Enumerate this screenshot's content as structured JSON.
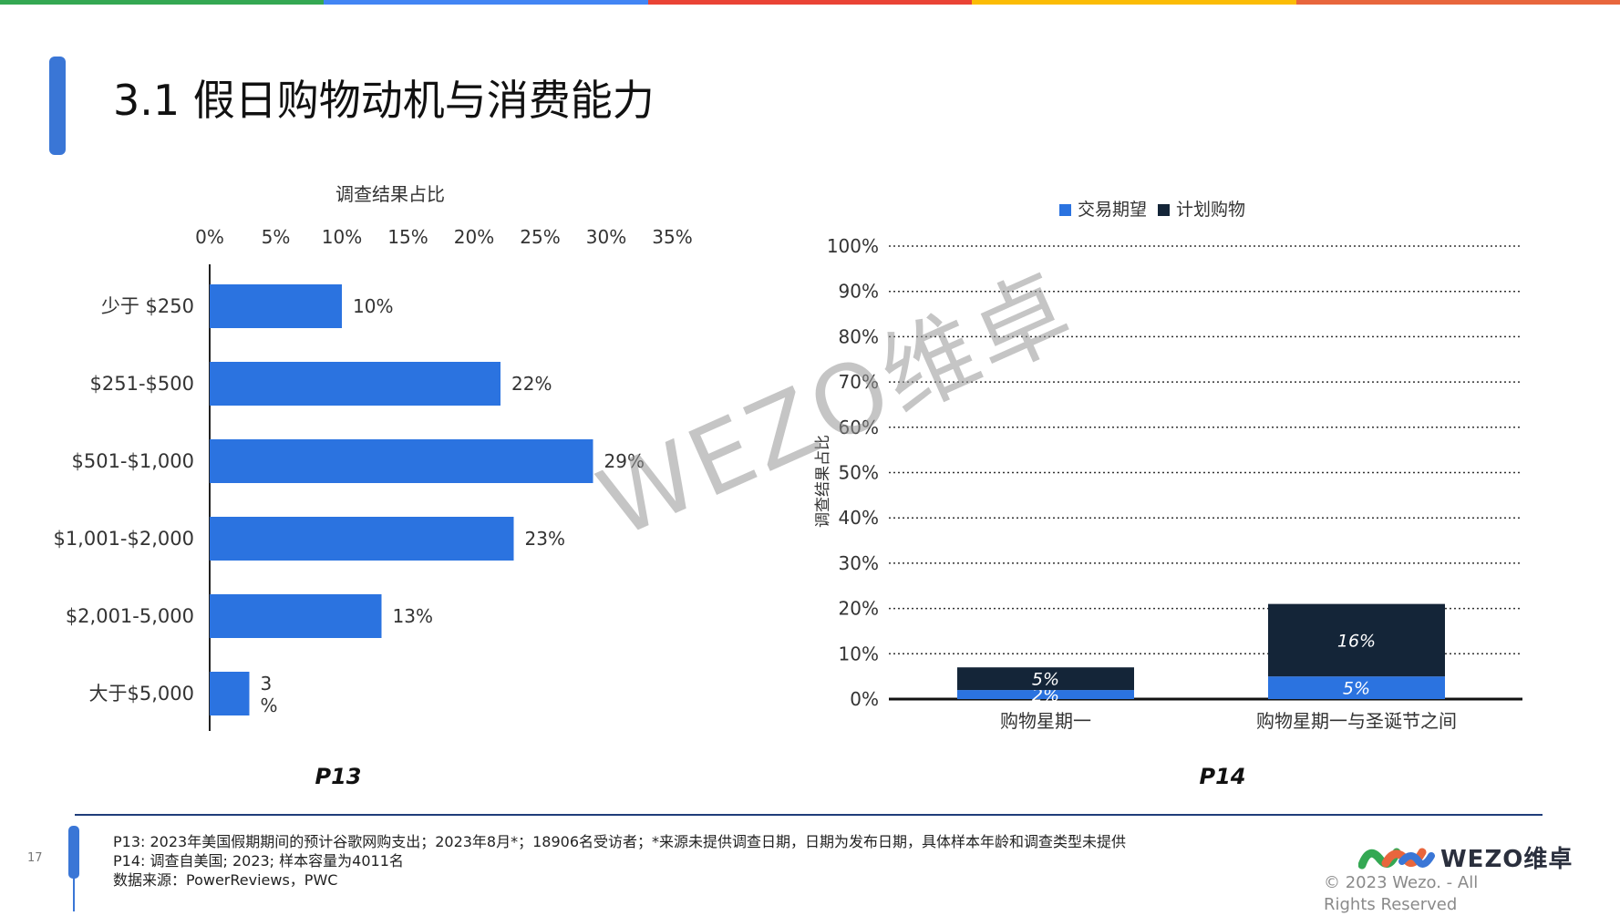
{
  "top_bar_colors": [
    "#34a853",
    "#4285f4",
    "#ea4335",
    "#fbbc05",
    "#e8663d"
  ],
  "page": {
    "title": "3.1 假日购物动机与消费能力",
    "page_number": "17"
  },
  "watermark": "WEZO维卓",
  "chart_data": [
    {
      "type": "bar",
      "orientation": "horizontal",
      "title": "调查结果占比",
      "caption": "P13",
      "categories": [
        "少于 $250",
        "$251-$500",
        "$501-$1,000",
        "$1,001-$2,000",
        "$2,001-5,000",
        "大于$5,000"
      ],
      "values": [
        10,
        22,
        29,
        23,
        13,
        3
      ],
      "data_labels": [
        "10%",
        "22%",
        "29%",
        "23%",
        "13%",
        "3\n%"
      ],
      "x_ticks": [
        "0%",
        "5%",
        "10%",
        "15%",
        "20%",
        "25%",
        "30%",
        "35%"
      ],
      "xlim": [
        0,
        35
      ],
      "x_axis_position": "top",
      "grid": false,
      "color": "#2b73e0"
    },
    {
      "type": "bar",
      "stacked": true,
      "caption": "P14",
      "ylabel": "调查结果占比",
      "categories": [
        "购物星期一",
        "购物星期一与圣诞节之间"
      ],
      "series": [
        {
          "name": "交易期望",
          "values": [
            2,
            5
          ],
          "labels": [
            "2%",
            "5%"
          ],
          "color": "#2b73e0"
        },
        {
          "name": "计划购物",
          "values": [
            5,
            16
          ],
          "labels": [
            "5%",
            "16%"
          ],
          "color": "#142538"
        }
      ],
      "y_ticks": [
        "0%",
        "10%",
        "20%",
        "30%",
        "40%",
        "50%",
        "60%",
        "70%",
        "80%",
        "90%",
        "100%"
      ],
      "ylim": [
        0,
        100
      ],
      "grid": "dotted",
      "legend_position": "top"
    }
  ],
  "footer": {
    "notes": [
      "P13:  2023年美国假期期间的预计谷歌网购支出；2023年8月*；18906名受访者；*来源未提供调查日期，日期为发布日期，具体样本年龄和调查类型未提供",
      "P14:  调查自美国; 2023; 样本容量为4011名",
      "数据来源：PowerReviews，PWC"
    ],
    "logo_text": "WEZO维卓",
    "copyright": "© 2023 Wezo. - All Rights Reserved"
  }
}
